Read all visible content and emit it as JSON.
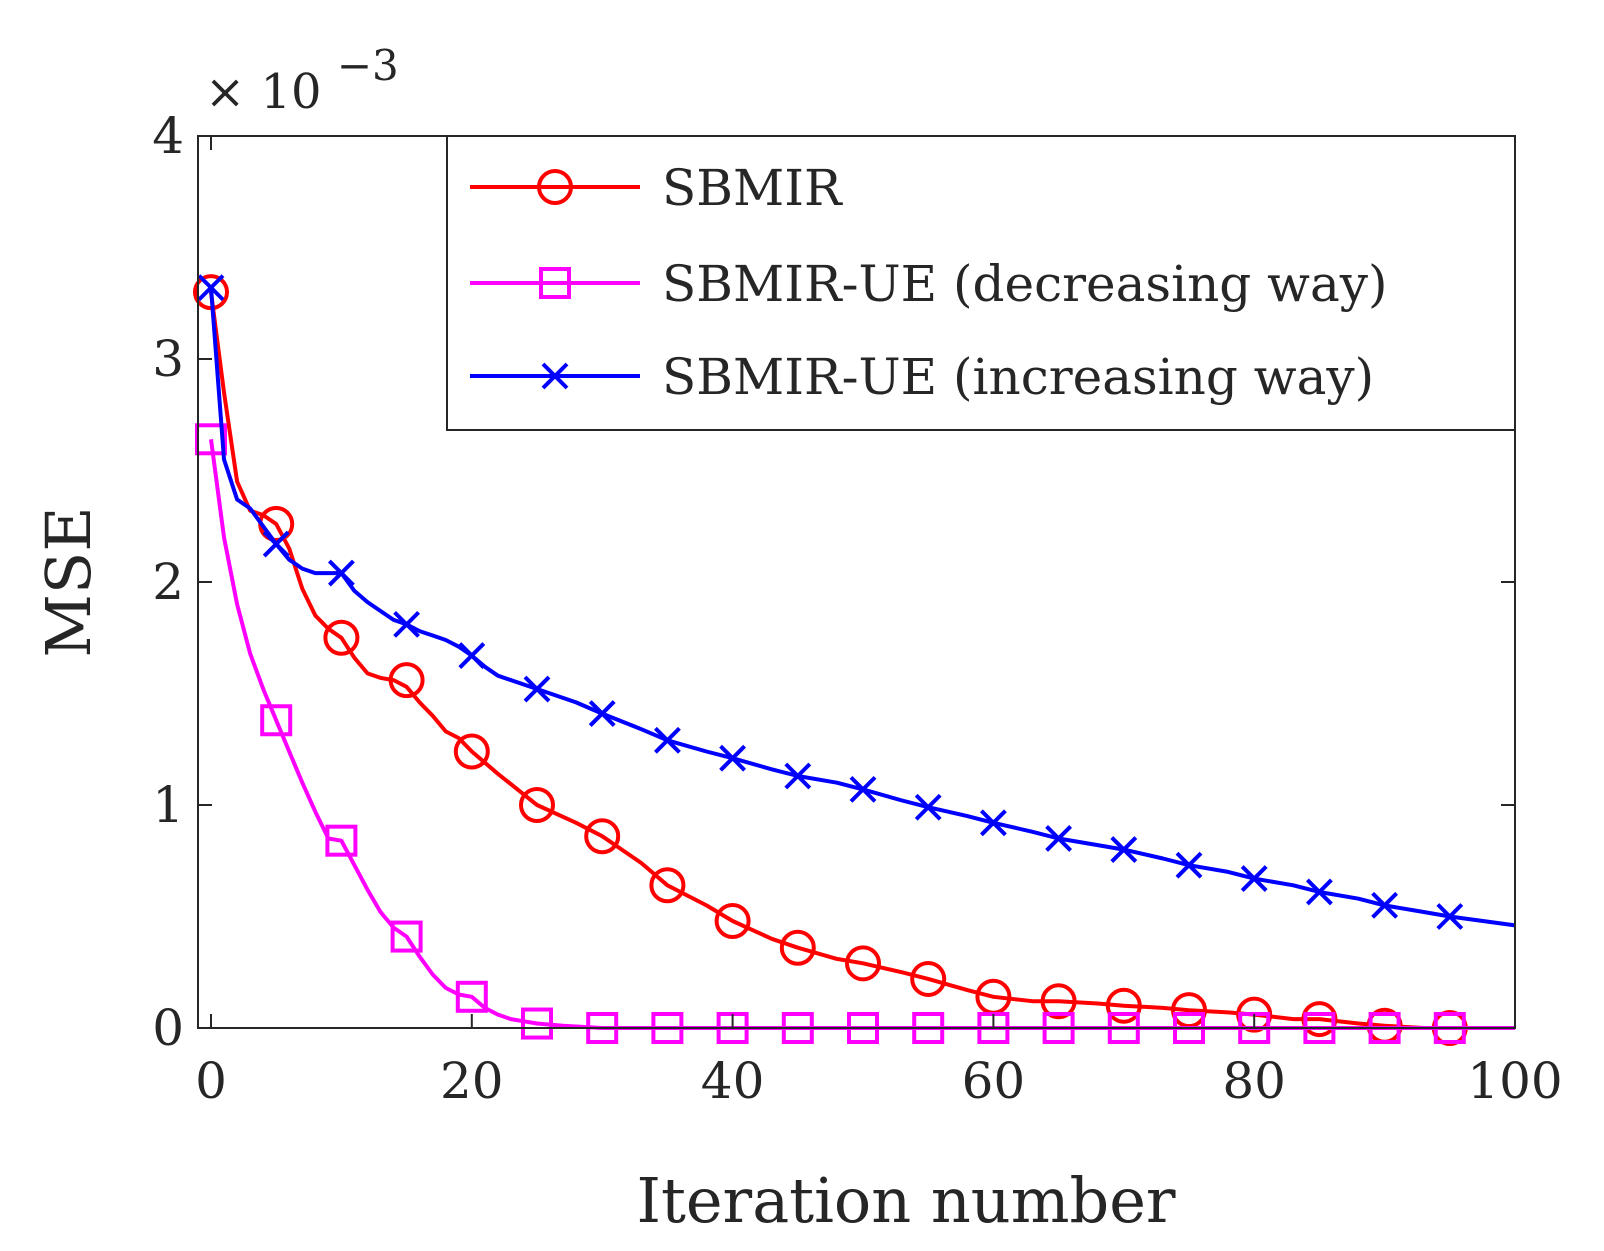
{
  "chart_data": {
    "type": "line",
    "title": "",
    "xlabel": "Iteration number",
    "ylabel": "MSE",
    "xlim": [
      0,
      100
    ],
    "ylim": [
      0,
      4
    ],
    "y_exponent": {
      "prefix": "× 10",
      "power": "−3"
    },
    "xticks": [
      0,
      20,
      40,
      60,
      80,
      100
    ],
    "yticks": [
      0,
      1,
      2,
      3,
      4
    ],
    "xtick_labels": [
      "0",
      "20",
      "40",
      "60",
      "80",
      "100"
    ],
    "ytick_labels": [
      "0",
      "1",
      "2",
      "3",
      "4"
    ],
    "grid": false,
    "legend_position": "top-right",
    "series": [
      {
        "name": "SBMIR",
        "color": "#ff0000",
        "marker": "circle",
        "line_x": [
          0,
          1,
          2,
          3,
          4,
          5,
          6,
          7,
          8,
          9,
          10,
          11,
          12,
          13,
          14,
          15,
          16,
          17,
          18,
          19,
          20,
          22,
          25,
          28,
          30,
          33,
          35,
          38,
          40,
          43,
          45,
          48,
          50,
          53,
          55,
          58,
          60,
          63,
          65,
          68,
          70,
          73,
          75,
          78,
          80,
          83,
          85,
          88,
          90,
          93,
          95,
          100
        ],
        "line_y": [
          3.3,
          2.85,
          2.45,
          2.32,
          2.3,
          2.26,
          2.15,
          1.97,
          1.85,
          1.79,
          1.75,
          1.66,
          1.59,
          1.57,
          1.56,
          1.53,
          1.46,
          1.4,
          1.33,
          1.3,
          1.24,
          1.14,
          1.0,
          0.92,
          0.86,
          0.74,
          0.64,
          0.55,
          0.48,
          0.4,
          0.36,
          0.31,
          0.29,
          0.25,
          0.22,
          0.17,
          0.14,
          0.12,
          0.12,
          0.11,
          0.1,
          0.09,
          0.08,
          0.07,
          0.06,
          0.04,
          0.04,
          0.02,
          0.01,
          0.0,
          0.0,
          0.0
        ],
        "marker_x": [
          0,
          5,
          10,
          15,
          20,
          25,
          30,
          35,
          40,
          45,
          50,
          55,
          60,
          65,
          70,
          75,
          80,
          85,
          90,
          95
        ],
        "marker_y": [
          3.3,
          2.26,
          1.75,
          1.56,
          1.24,
          1.0,
          0.86,
          0.64,
          0.48,
          0.36,
          0.29,
          0.22,
          0.14,
          0.12,
          0.1,
          0.08,
          0.06,
          0.04,
          0.01,
          0.0
        ]
      },
      {
        "name": "SBMIR-UE (decreasing way)",
        "color": "#ff00ff",
        "marker": "square",
        "line_x": [
          0,
          1,
          2,
          3,
          4,
          5,
          6,
          7,
          8,
          9,
          10,
          11,
          12,
          13,
          14,
          15,
          16,
          17,
          18,
          19,
          20,
          21,
          22,
          23,
          24,
          25,
          27,
          30,
          35,
          40,
          45,
          50,
          55,
          60,
          65,
          70,
          75,
          80,
          85,
          90,
          95,
          100
        ],
        "line_y": [
          2.64,
          2.2,
          1.9,
          1.68,
          1.52,
          1.38,
          1.24,
          1.1,
          0.97,
          0.85,
          0.84,
          0.73,
          0.62,
          0.52,
          0.45,
          0.41,
          0.32,
          0.24,
          0.18,
          0.15,
          0.14,
          0.09,
          0.06,
          0.04,
          0.03,
          0.02,
          0.01,
          0.0,
          0.0,
          0.0,
          0.0,
          0.0,
          0.0,
          0.0,
          0.0,
          0.0,
          0.0,
          0.0,
          0.0,
          0.0,
          0.0,
          0.0
        ],
        "marker_x": [
          0,
          5,
          10,
          15,
          20,
          25,
          30,
          35,
          40,
          45,
          50,
          55,
          60,
          65,
          70,
          75,
          80,
          85,
          90,
          95
        ],
        "marker_y": [
          2.64,
          1.38,
          0.84,
          0.41,
          0.14,
          0.02,
          0.0,
          0.0,
          0.0,
          0.0,
          0.0,
          0.0,
          0.0,
          0.0,
          0.0,
          0.0,
          0.0,
          0.0,
          0.0,
          0.0
        ]
      },
      {
        "name": "SBMIR-UE (increasing way)",
        "color": "#0000ff",
        "marker": "x",
        "line_x": [
          0,
          1,
          2,
          3,
          4,
          5,
          6,
          7,
          8,
          9,
          10,
          11,
          12,
          13,
          14,
          15,
          16,
          17,
          18,
          19,
          20,
          21,
          22,
          25,
          28,
          30,
          33,
          35,
          38,
          40,
          43,
          45,
          48,
          50,
          53,
          55,
          58,
          60,
          63,
          65,
          68,
          70,
          73,
          75,
          78,
          80,
          83,
          85,
          88,
          90,
          93,
          95,
          100
        ],
        "line_y": [
          3.32,
          2.55,
          2.37,
          2.33,
          2.25,
          2.17,
          2.1,
          2.06,
          2.04,
          2.04,
          2.04,
          1.96,
          1.91,
          1.87,
          1.83,
          1.81,
          1.78,
          1.76,
          1.74,
          1.71,
          1.67,
          1.62,
          1.58,
          1.52,
          1.46,
          1.41,
          1.34,
          1.29,
          1.24,
          1.21,
          1.16,
          1.13,
          1.1,
          1.07,
          1.02,
          0.99,
          0.95,
          0.92,
          0.88,
          0.85,
          0.82,
          0.8,
          0.76,
          0.73,
          0.7,
          0.67,
          0.64,
          0.61,
          0.58,
          0.55,
          0.52,
          0.5,
          0.46
        ],
        "marker_x": [
          0,
          5,
          10,
          15,
          20,
          25,
          30,
          35,
          40,
          45,
          50,
          55,
          60,
          65,
          70,
          75,
          80,
          85,
          90,
          95
        ],
        "marker_y": [
          3.32,
          2.17,
          2.04,
          1.81,
          1.67,
          1.52,
          1.41,
          1.29,
          1.21,
          1.13,
          1.07,
          0.99,
          0.92,
          0.85,
          0.8,
          0.73,
          0.67,
          0.61,
          0.55,
          0.5
        ]
      }
    ]
  }
}
